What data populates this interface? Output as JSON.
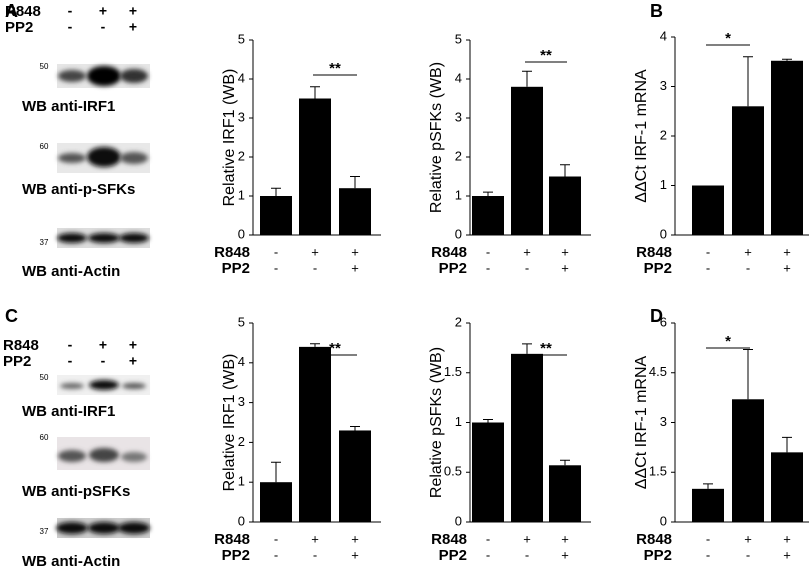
{
  "panel_labels": [
    "A",
    "B",
    "C",
    "D"
  ],
  "blot_panels": [
    {
      "conditions": [
        {
          "name": "R848",
          "labels": [
            "-",
            "+",
            "+"
          ]
        },
        {
          "name": "PP2",
          "labels": [
            "-",
            "-",
            "+"
          ]
        }
      ],
      "blots": [
        {
          "marker": "50",
          "label": "WB anti-IRF1"
        },
        {
          "marker": "60",
          "label": "WB anti-p-SFKs"
        },
        {
          "marker": "37",
          "label": "WB anti-Actin"
        }
      ]
    },
    {
      "conditions": [
        {
          "name": "R848",
          "labels": [
            "-",
            "+",
            "+"
          ]
        },
        {
          "name": "PP2",
          "labels": [
            "-",
            "-",
            "+"
          ]
        }
      ],
      "blots": [
        {
          "marker": "50",
          "label": "WB anti-IRF1"
        },
        {
          "marker": "60",
          "label": "WB anti-pSFKs"
        },
        {
          "marker": "37",
          "label": "WB anti-Actin"
        }
      ]
    }
  ],
  "chart_data": [
    {
      "type": "bar",
      "y_label": "Relative IRF1 (WB)",
      "color": "#000000",
      "values": [
        1.0,
        3.5,
        1.2
      ],
      "errors": [
        0.2,
        0.3,
        0.3
      ],
      "ylim": [
        0,
        5
      ],
      "yticks": [
        0,
        1,
        2,
        3,
        4,
        5
      ],
      "significance": "**",
      "conditions": [
        {
          "name": "R848",
          "labels": [
            "-",
            "+",
            "+"
          ]
        },
        {
          "name": "PP2",
          "labels": [
            "-",
            "-",
            "+"
          ]
        }
      ]
    },
    {
      "type": "bar",
      "y_label": "Relative pSFKs (WB)",
      "color": "#000000",
      "values": [
        1.0,
        3.8,
        1.5
      ],
      "errors": [
        0.1,
        0.4,
        0.3
      ],
      "ylim": [
        0,
        5
      ],
      "yticks": [
        0,
        1,
        2,
        3,
        4,
        5
      ],
      "significance": "**",
      "conditions": [
        {
          "name": "R848",
          "labels": [
            "-",
            "+",
            "+"
          ]
        },
        {
          "name": "PP2",
          "labels": [
            "-",
            "-",
            "+"
          ]
        }
      ]
    },
    {
      "type": "bar",
      "y_label": "ΔΔCt IRF-1 mRNA",
      "color": "#000000",
      "values": [
        1.0,
        2.6,
        3.52
      ],
      "errors": [
        null,
        1.0,
        0.03
      ],
      "ylim": [
        0,
        4
      ],
      "yticks": [
        0,
        1,
        2,
        3,
        4
      ],
      "significance": "*",
      "conditions": [
        {
          "name": "R848",
          "labels": [
            "-",
            "+",
            "+"
          ]
        },
        {
          "name": "PP2",
          "labels": [
            "-",
            "-",
            "+"
          ]
        }
      ]
    },
    {
      "type": "bar",
      "y_label": "Relative IRF1 (WB)",
      "color": "#000000",
      "values": [
        1.0,
        4.4,
        2.3
      ],
      "errors": [
        0.5,
        0.08,
        0.1
      ],
      "ylim": [
        0,
        5
      ],
      "yticks": [
        0,
        1,
        2,
        3,
        4,
        5
      ],
      "significance": "**",
      "conditions": [
        {
          "name": "R848",
          "labels": [
            "-",
            "+",
            "+"
          ]
        },
        {
          "name": "PP2",
          "labels": [
            "-",
            "-",
            "+"
          ]
        }
      ]
    },
    {
      "type": "bar",
      "y_label": "Relative pSFKs (WB)",
      "color": "#000000",
      "values": [
        1.0,
        1.69,
        0.57
      ],
      "errors": [
        0.03,
        0.1,
        0.05
      ],
      "ylim": [
        0,
        2
      ],
      "yticks": [
        0,
        0.5,
        1,
        1.5,
        2
      ],
      "significance": "**",
      "conditions": [
        {
          "name": "R848",
          "labels": [
            "-",
            "+",
            "+"
          ]
        },
        {
          "name": "PP2",
          "labels": [
            "-",
            "-",
            "+"
          ]
        }
      ]
    },
    {
      "type": "bar",
      "y_label": "ΔΔCt IRF-1 mRNA",
      "color": "#000000",
      "values": [
        1.0,
        3.7,
        2.1
      ],
      "errors": [
        0.15,
        1.5,
        0.45
      ],
      "ylim": [
        0,
        6
      ],
      "yticks": [
        0,
        1.5,
        3,
        4.5,
        6
      ],
      "significance": "*",
      "conditions": [
        {
          "name": "R848",
          "labels": [
            "-",
            "+",
            "+"
          ]
        },
        {
          "name": "PP2",
          "labels": [
            "-",
            "-",
            "+"
          ]
        }
      ]
    }
  ]
}
